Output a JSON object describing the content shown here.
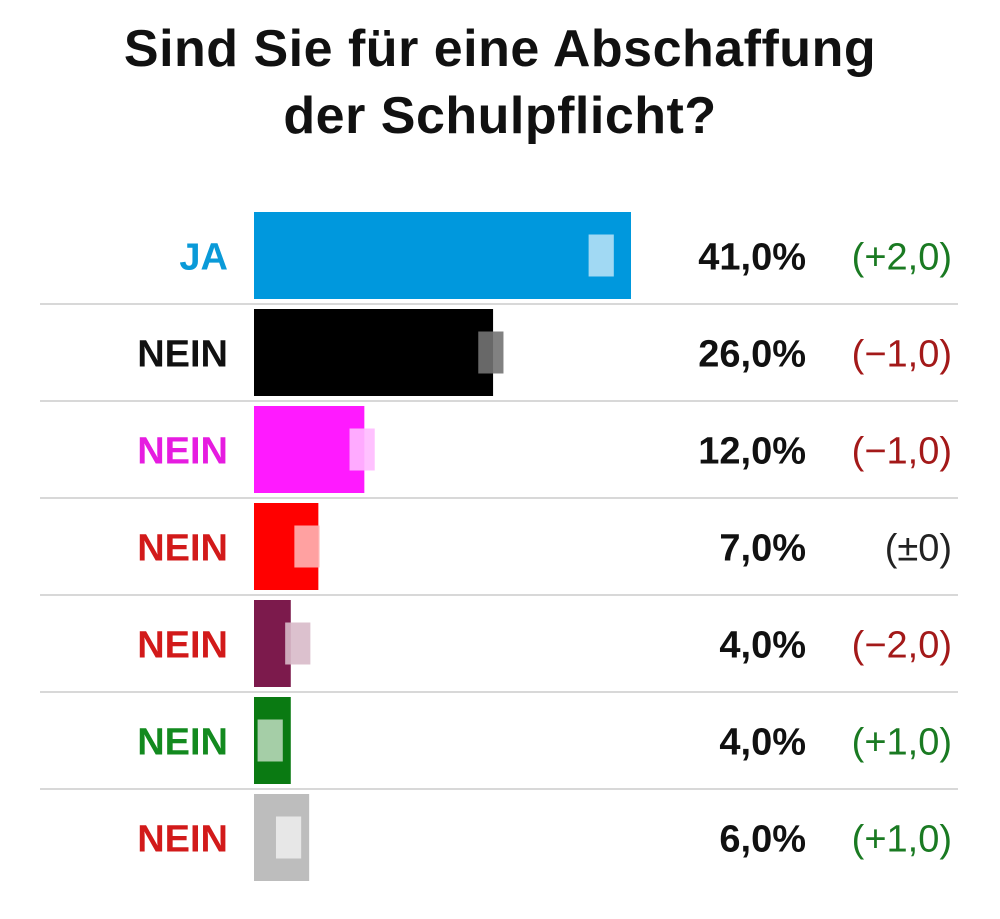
{
  "colors": {
    "positive": "#1a7a22",
    "negative": "#a31919",
    "neutral": "#222222",
    "gridline": "#d8d8d8"
  },
  "chart_data": {
    "type": "bar",
    "orientation": "horizontal",
    "title_lines": [
      "Sind Sie für eine Abschaffung",
      "der Schulpflicht?"
    ],
    "xlim": [
      0,
      50
    ],
    "grid": false,
    "legend": "none",
    "rows": [
      {
        "label": "JA",
        "label_color": "#0a9ad8",
        "bar_color": "#0098dd",
        "value": 41.0,
        "value_text": "41,0%",
        "change": 2.0,
        "change_text": "(+2,0)"
      },
      {
        "label": "NEIN",
        "label_color": "#111111",
        "bar_color": "#000000",
        "value": 26.0,
        "value_text": "26,0%",
        "change": -1.0,
        "change_text": "(−1,0)"
      },
      {
        "label": "NEIN",
        "label_color": "#e61ce0",
        "bar_color": "#ff1aff",
        "value": 12.0,
        "value_text": "12,0%",
        "change": -1.0,
        "change_text": "(−1,0)"
      },
      {
        "label": "NEIN",
        "label_color": "#d21a1a",
        "bar_color": "#ff0000",
        "value": 7.0,
        "value_text": "7,0%",
        "change": 0.0,
        "change_text": "(±0)"
      },
      {
        "label": "NEIN",
        "label_color": "#d21a1a",
        "bar_color": "#7c1a4c",
        "value": 4.0,
        "value_text": "4,0%",
        "change": -2.0,
        "change_text": "(−2,0)"
      },
      {
        "label": "NEIN",
        "label_color": "#138a1f",
        "bar_color": "#0a7a12",
        "value": 4.0,
        "value_text": "4,0%",
        "change": 1.0,
        "change_text": "(+1,0)"
      },
      {
        "label": "NEIN",
        "label_color": "#d21a1a",
        "bar_color": "#bdbdbd",
        "value": 6.0,
        "value_text": "6,0%",
        "change": 1.0,
        "change_text": "(+1,0)"
      }
    ]
  }
}
